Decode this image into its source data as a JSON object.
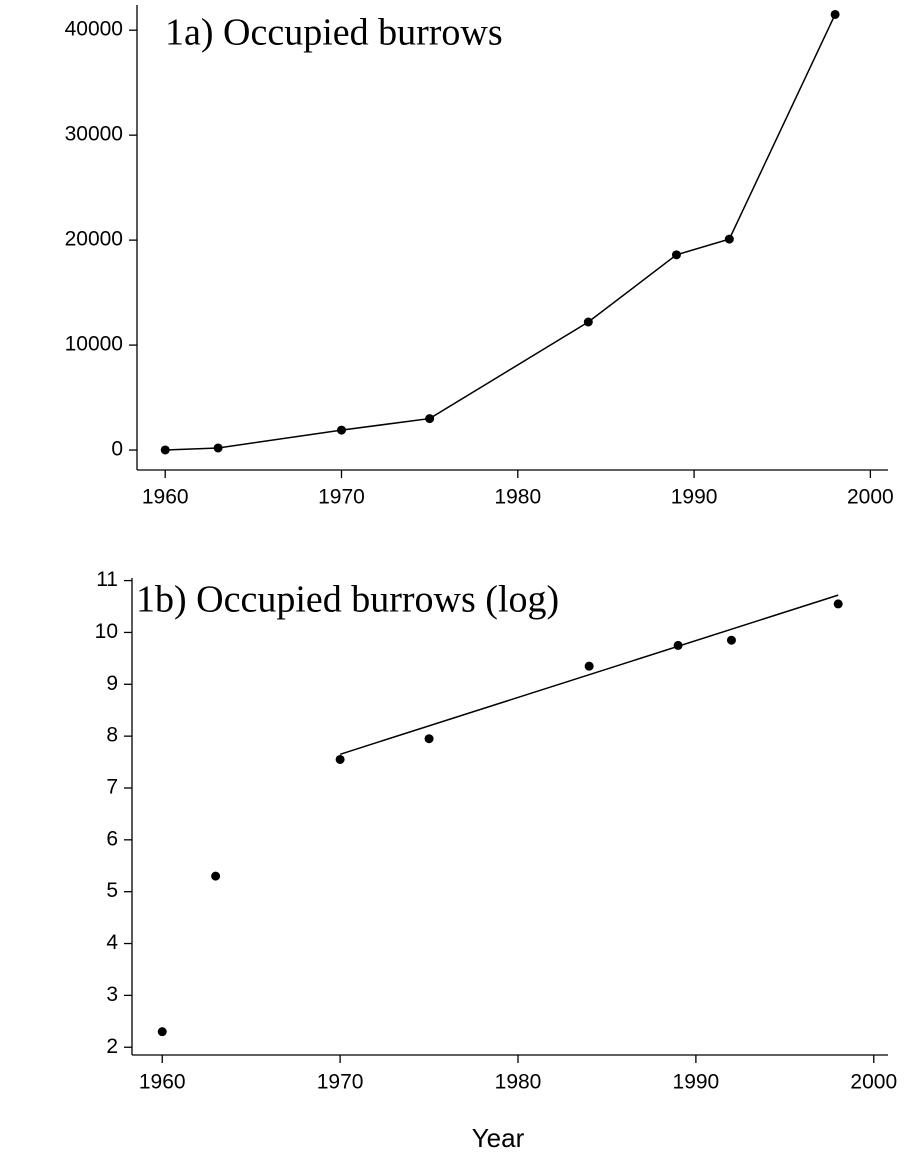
{
  "chart_data": [
    {
      "type": "line",
      "title": "1a)  Occupied burrows",
      "x": [
        1960,
        1963,
        1970,
        1975,
        1984,
        1989,
        1992,
        1998
      ],
      "values": [
        10,
        200,
        1900,
        3000,
        12200,
        18600,
        20100,
        41500
      ],
      "color": "#000000",
      "xlim": [
        1958.4,
        2001
      ],
      "xticks": [
        1960,
        1970,
        1980,
        1990,
        2000
      ],
      "ylim": [
        -1900,
        42400
      ],
      "yticks": [
        0,
        10000,
        20000,
        30000,
        40000
      ]
    },
    {
      "type": "scatter",
      "title": "1b)  Occupied burrows (log)",
      "x_label": "Year",
      "x": [
        1960,
        1963,
        1970,
        1975,
        1984,
        1989,
        1992,
        1998
      ],
      "values": [
        2.3,
        5.3,
        7.55,
        7.95,
        9.35,
        9.75,
        9.85,
        10.55
      ],
      "trend_line": {
        "x": [
          1970,
          1998
        ],
        "values": [
          7.65,
          10.72
        ]
      },
      "color": "#000000",
      "xlim": [
        1958.3,
        2000.8
      ],
      "xticks": [
        1960,
        1970,
        1980,
        1990,
        2000
      ],
      "ylim": [
        1.85,
        11.05
      ],
      "yticks": [
        2,
        3,
        4,
        5,
        6,
        7,
        8,
        9,
        10,
        11
      ]
    }
  ]
}
